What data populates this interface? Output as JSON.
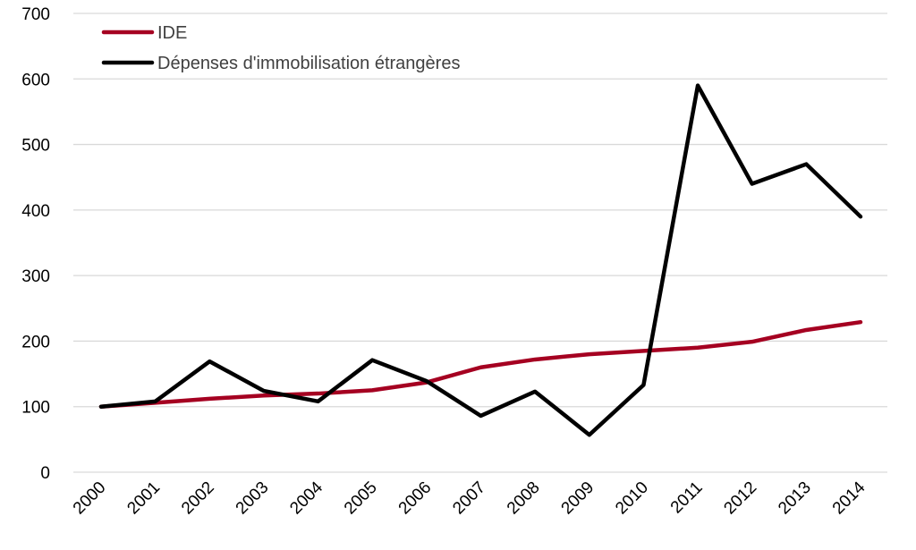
{
  "chart_data": {
    "type": "line",
    "title": "",
    "xlabel": "",
    "ylabel": "",
    "categories": [
      "2000",
      "2001",
      "2002",
      "2003",
      "2004",
      "2005",
      "2006",
      "2007",
      "2008",
      "2009",
      "2010",
      "2011",
      "2012",
      "2013",
      "2014"
    ],
    "ylim": [
      0,
      700
    ],
    "yticks": [
      0,
      100,
      200,
      300,
      400,
      500,
      600,
      700
    ],
    "grid": true,
    "legend_position": "top-left",
    "series": [
      {
        "name": "IDE",
        "color": "#a50021",
        "values": [
          100,
          106,
          112,
          117,
          120,
          125,
          137,
          160,
          172,
          180,
          185,
          190,
          199,
          217,
          229
        ]
      },
      {
        "name": "Dépenses d'immobilisation étrangères",
        "color": "#000000",
        "values": [
          100,
          108,
          169,
          124,
          108,
          171,
          139,
          86,
          123,
          57,
          133,
          590,
          440,
          470,
          390
        ]
      }
    ]
  }
}
